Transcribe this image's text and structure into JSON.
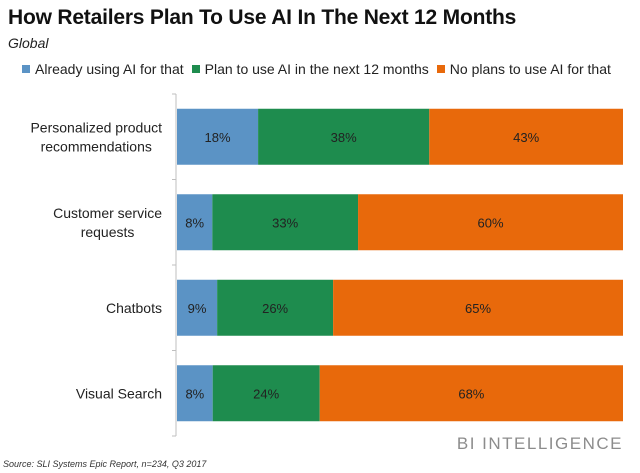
{
  "chart_data": {
    "type": "bar",
    "orientation": "horizontal",
    "stacked": true,
    "title": "How Retailers Plan To Use AI In The Next 12 Months",
    "subtitle": "Global",
    "xlabel": "",
    "ylabel": "",
    "xlim": [
      0,
      100
    ],
    "grid": false,
    "legend_position": "top",
    "categories": [
      [
        "Personalized product",
        "recommendations"
      ],
      [
        "Customer service",
        "requests"
      ],
      [
        "Chatbots"
      ],
      [
        "Visual Search"
      ]
    ],
    "series": [
      {
        "name": "Already using AI for that",
        "color": "#5b93c5",
        "values": [
          18,
          8,
          9,
          8
        ]
      },
      {
        "name": "Plan to use AI in the next 12 months",
        "color": "#1e8c4e",
        "values": [
          38,
          33,
          26,
          24
        ]
      },
      {
        "name": "No plans to use AI for that",
        "color": "#e8690b",
        "values": [
          43,
          60,
          65,
          68
        ]
      }
    ],
    "value_suffix": "%"
  },
  "footer": {
    "source": "Source: SLI Systems Epic Report, n=234, Q3 2017",
    "brand": "BI INTELLIGENCE"
  }
}
